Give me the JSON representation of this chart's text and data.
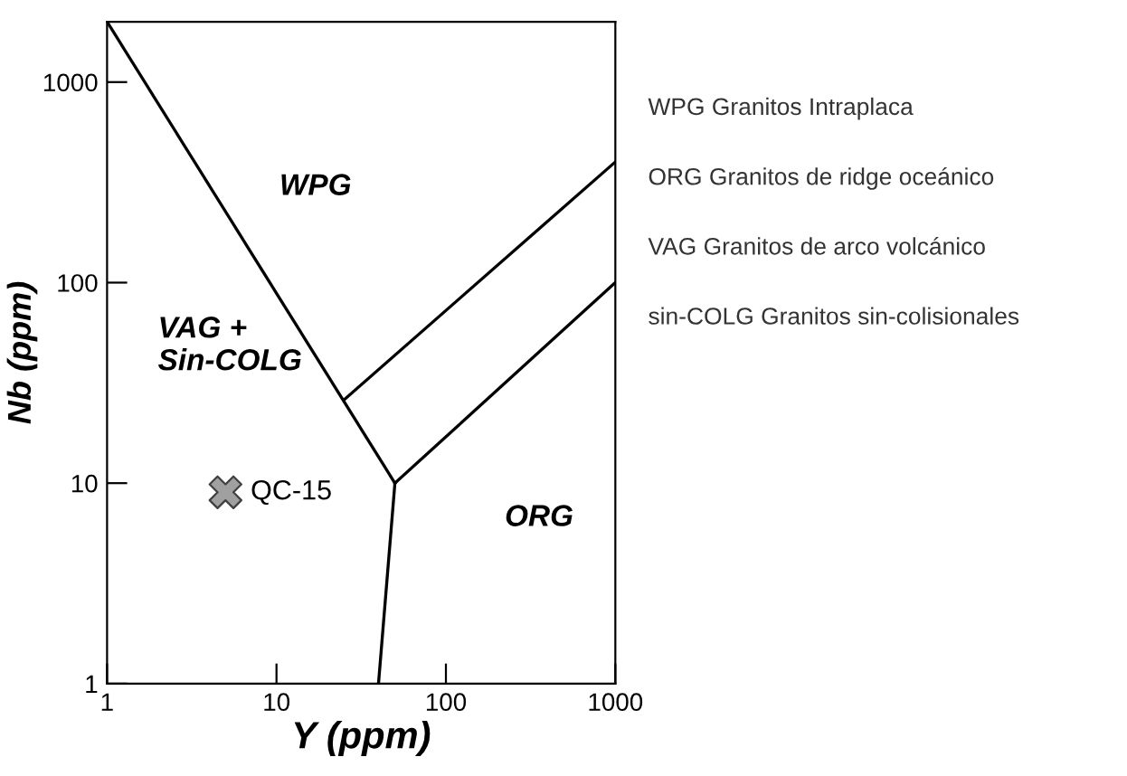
{
  "chart_data": {
    "type": "line",
    "xlabel": "Y (ppm)",
    "ylabel": "Nb (ppm)",
    "log": "xy",
    "xlim": [
      1,
      1000
    ],
    "ylim": [
      1,
      2000
    ],
    "xticks": [
      1,
      10,
      100,
      1000
    ],
    "yticks": [
      1,
      10,
      100,
      1000
    ],
    "grid": false,
    "legend": false,
    "series": [
      {
        "color": "#000000",
        "x": [
          1,
          50
        ],
        "values": [
          2000,
          10
        ]
      },
      {
        "color": "#000000",
        "x": [
          50,
          40
        ],
        "values": [
          10,
          1
        ]
      },
      {
        "color": "#000000",
        "x": [
          25,
          1000
        ],
        "values": [
          26,
          400
        ]
      },
      {
        "color": "#000000",
        "x": [
          50,
          1000
        ],
        "values": [
          10,
          100
        ]
      },
      {
        "type": "scatter",
        "name": "QC-15",
        "marker": "cross",
        "color": "#a0a0a0",
        "x": [
          5
        ],
        "values": [
          9
        ]
      }
    ],
    "annotations": [
      "WPG",
      "VAG +\nSin-COLG",
      "ORG",
      "WPG Granitos Intraplaca",
      "ORG Granitos de ridge oceánico",
      "VAG Granitos de arco volcánico",
      "sin-COLG Granitos sin-colisionales"
    ]
  }
}
